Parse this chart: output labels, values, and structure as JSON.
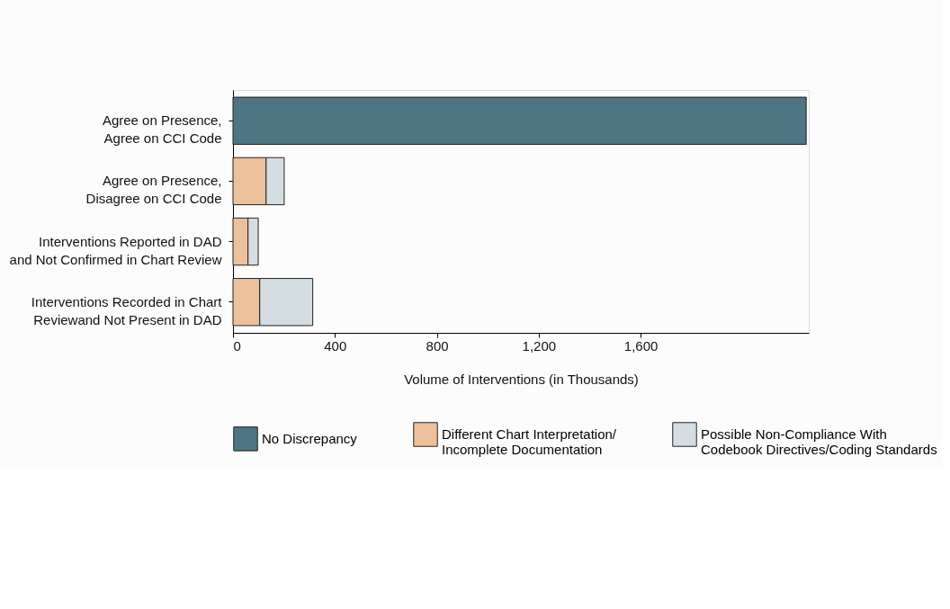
{
  "chart_data": {
    "type": "bar",
    "orientation": "horizontal",
    "stacked": true,
    "categories": [
      "Agree on Presence, Agree on CCI Code",
      "Agree on Presence, Disagree on CCI Code",
      "Interventions Reported in DAD and Not Confirmed in Chart Review",
      "Interventions Recorded in Chart Reviewand Not Present in DAD"
    ],
    "series": [
      {
        "name": "No Discrepancy",
        "color": "#4d7583",
        "values": [
          2250,
          null,
          null,
          null
        ]
      },
      {
        "name": "Different Chart Interpretation/ Incomplete Documentation",
        "color": "#ecc09a",
        "values": [
          null,
          130,
          59,
          105
        ]
      },
      {
        "name": "Possible Non-Compliance With Codebook Directives/Coding Standards",
        "color": "#d3dde2",
        "values": [
          null,
          71,
          40,
          208
        ]
      }
    ],
    "xlabel": "Volume of Interventions (in Thousands)",
    "xlim": [
      0,
      2260
    ],
    "xticks": [
      0,
      {
        "value": 400,
        "label": "400"
      },
      {
        "value": 800,
        "label": "800"
      },
      {
        "value": 1200,
        "label": "1,200"
      },
      {
        "value": 1600,
        "label": "1,600"
      }
    ],
    "grid": false,
    "legend": "bottom"
  }
}
